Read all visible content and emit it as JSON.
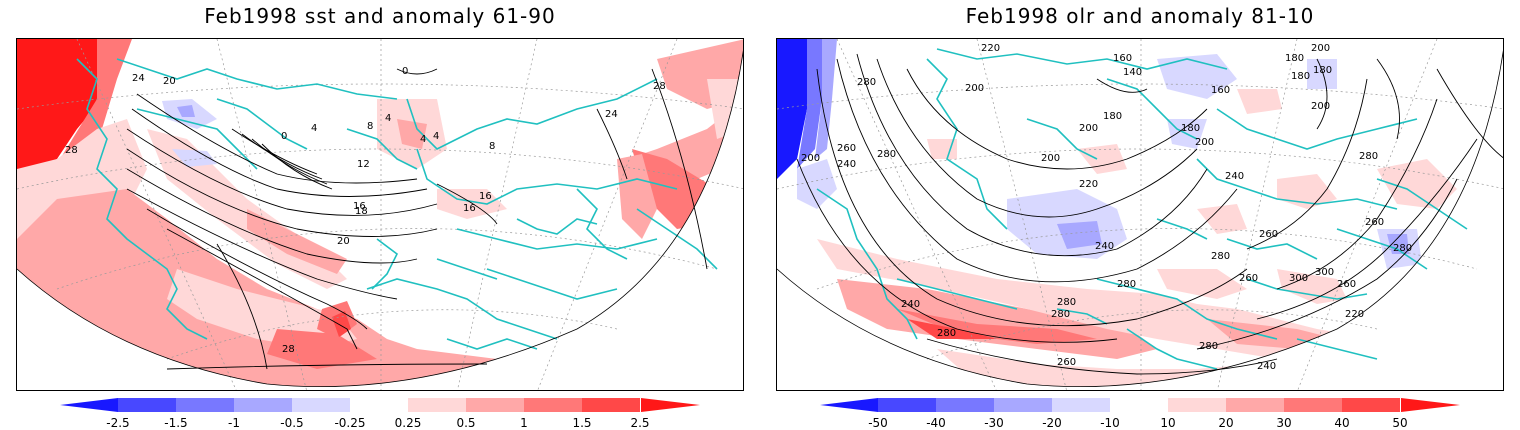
{
  "panels": [
    {
      "title": "Feb1998 sst and anomaly 61-90",
      "colorbar_labels": [
        "-2.5",
        "-1.5",
        "-1",
        "-0.5",
        "-0.25",
        "0.25",
        "0.5",
        "1",
        "1.5",
        "2.5"
      ],
      "contour_labels": [
        "24",
        "20",
        "28",
        "0",
        "4",
        "8",
        "12",
        "16",
        "18",
        "20",
        "28",
        "0",
        "4",
        "4",
        "4",
        "8",
        "16",
        "16",
        "24",
        "28"
      ]
    },
    {
      "title": "Feb1998 olr and anomaly 81-10",
      "colorbar_labels": [
        "-50",
        "-40",
        "-30",
        "-20",
        "-10",
        "10",
        "20",
        "30",
        "40",
        "50"
      ],
      "contour_labels": [
        "220",
        "160",
        "140",
        "200",
        "200",
        "180",
        "160",
        "180",
        "280",
        "200",
        "180",
        "200",
        "180",
        "180",
        "200",
        "200",
        "240",
        "260",
        "280",
        "200",
        "220",
        "240",
        "260",
        "280",
        "240",
        "280",
        "260",
        "280",
        "280",
        "300",
        "300",
        "260",
        "220",
        "280",
        "280",
        "240",
        "280",
        "260",
        "280",
        "240",
        "260"
      ]
    }
  ],
  "colorscale": {
    "colors": [
      "#1818ff",
      "#4848ff",
      "#7878ff",
      "#a8a8ff",
      "#d8d8ff",
      "#ffffff",
      "#ffd8d8",
      "#ffa8a8",
      "#ff7878",
      "#ff4848",
      "#ff1818"
    ],
    "map_land_color": "#ffffff",
    "coastline_color": "#20c0c0"
  }
}
